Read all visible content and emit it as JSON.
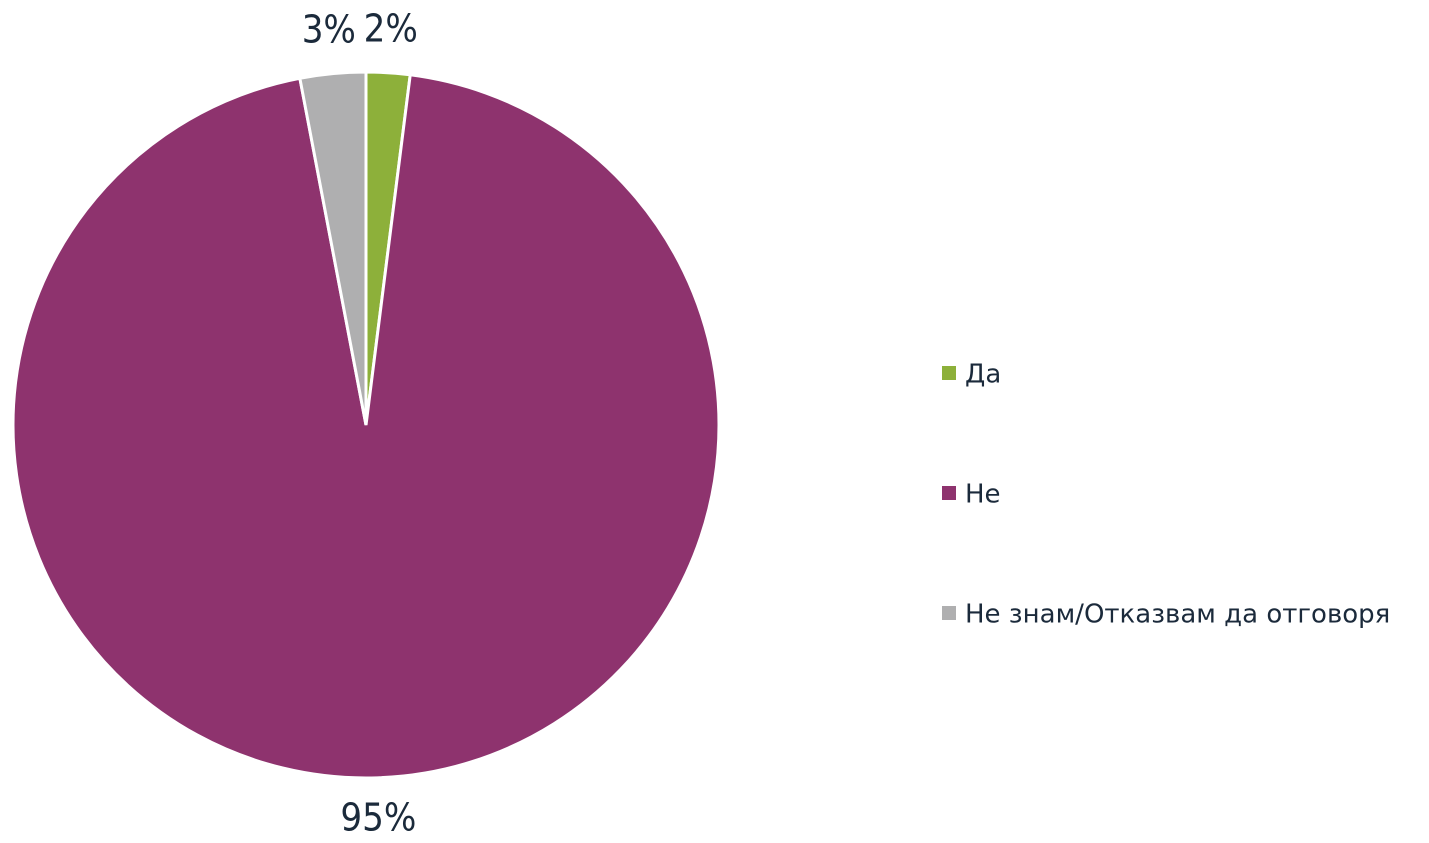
{
  "chart_data": {
    "type": "pie",
    "categories": [
      "Да",
      "Не",
      "Не знам/Отказвам да отговоря"
    ],
    "values": [
      2,
      95,
      3
    ],
    "value_labels": [
      "2%",
      "95%",
      "3%"
    ],
    "colors": [
      "#8db03a",
      "#8e336e",
      "#afafb0"
    ],
    "legend": "right"
  }
}
